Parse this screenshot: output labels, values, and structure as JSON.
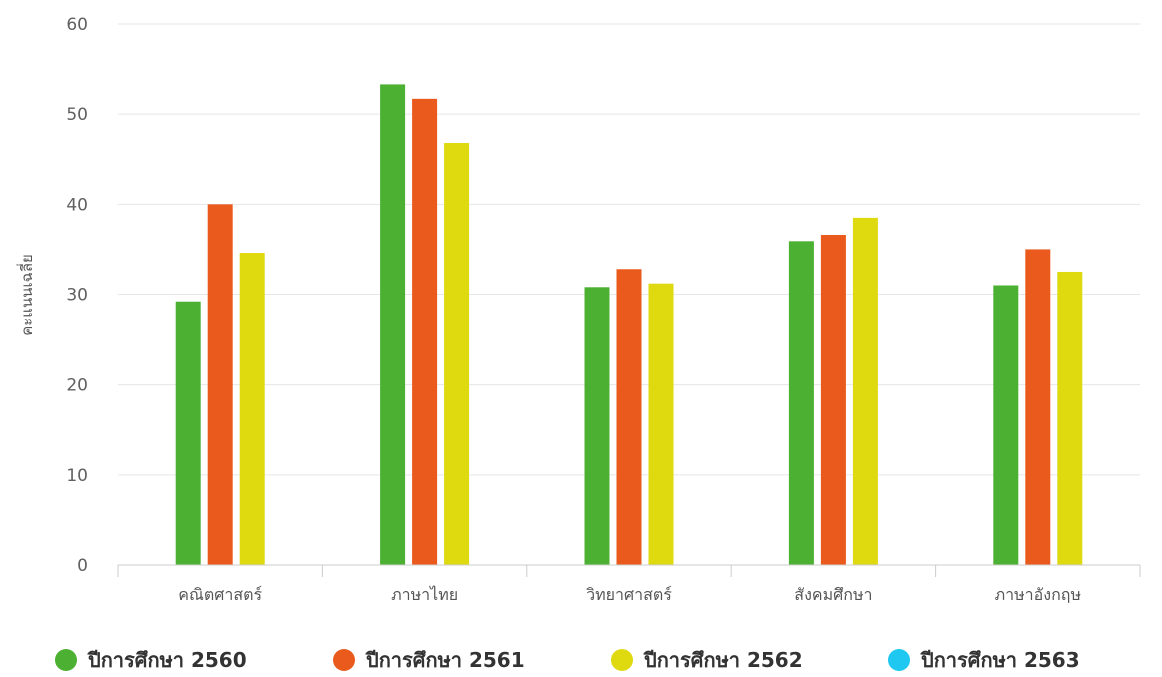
{
  "chart_data": {
    "type": "bar",
    "ylabel": "คะแนนเฉลี่ย",
    "ylim": [
      0,
      60
    ],
    "yticks": [
      0,
      10,
      20,
      30,
      40,
      50,
      60
    ],
    "grid": true,
    "legend_position": "bottom",
    "categories": [
      "คณิตศาสตร์",
      "ภาษาไทย",
      "วิทยาศาสตร์",
      "สังคมศึกษา",
      "ภาษาอังกฤษ"
    ],
    "series": [
      {
        "name": "ปีการศึกษา 2560",
        "color": "#4cb032",
        "values": [
          29.2,
          53.3,
          30.8,
          35.9,
          31.0
        ]
      },
      {
        "name": "ปีการศึกษา 2561",
        "color": "#ea5a1c",
        "values": [
          40.0,
          51.7,
          32.8,
          36.6,
          35.0
        ]
      },
      {
        "name": "ปีการศึกษา 2562",
        "color": "#dfd90f",
        "values": [
          34.6,
          46.8,
          31.2,
          38.5,
          32.5
        ]
      },
      {
        "name": "ปีการศึกษา 2563",
        "color": "#1ec8f0",
        "values": [
          null,
          null,
          null,
          null,
          null
        ]
      }
    ]
  }
}
